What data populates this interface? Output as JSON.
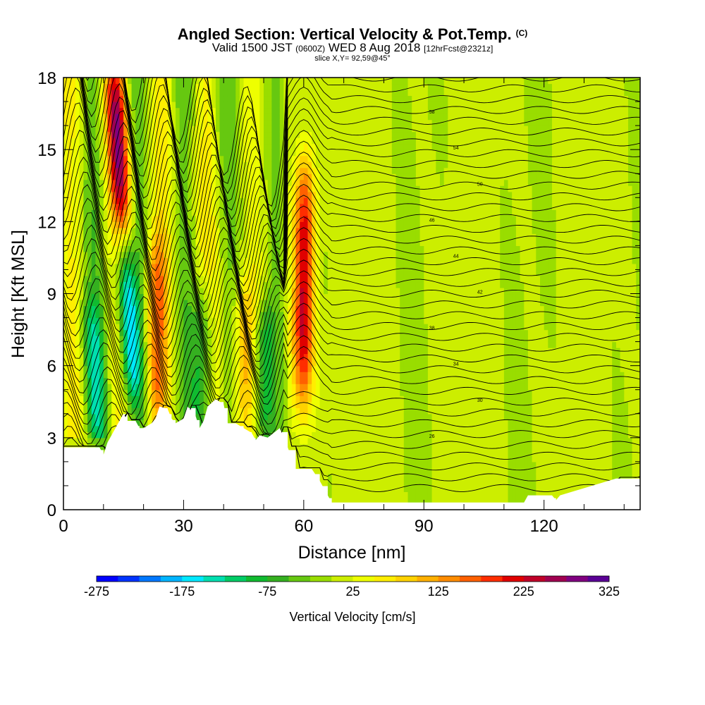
{
  "title": {
    "main": "Angled Section: Vertical Velocity & Pot.Temp.",
    "main_units": "(C)",
    "valid_prefix": "Valid 1500 JST",
    "valid_utc": "(0600Z)",
    "valid_date": "WED 8 Aug 2018",
    "valid_fcst": "[12hrFcst@2321z]",
    "slice": "slice X,Y= 92,59@45°"
  },
  "chart_data": {
    "type": "heatmap",
    "title": "Angled Section: Vertical Velocity & Pot.Temp. (C)",
    "xlabel": "Distance [nm]",
    "ylabel": "Height [Kft MSL]",
    "xlim": [
      0,
      144
    ],
    "ylim": [
      0,
      18
    ],
    "xticks": [
      0,
      30,
      60,
      90,
      120
    ],
    "yticks": [
      0,
      3,
      6,
      9,
      12,
      15,
      18
    ],
    "colorbar": {
      "label": "Vertical Velocity [cm/s]",
      "tick_labels": [
        -275,
        -175,
        -75,
        25,
        125,
        225,
        325
      ],
      "min": -275,
      "max": 325,
      "step": 25,
      "colors": [
        "#0000ff",
        "#0033ff",
        "#0077ff",
        "#00b4ff",
        "#00e8ff",
        "#00dfb0",
        "#00cc66",
        "#10bb30",
        "#35b020",
        "#66c810",
        "#99dd00",
        "#ccee00",
        "#eeff00",
        "#ffee00",
        "#ffd200",
        "#ffb000",
        "#ff8c00",
        "#ff6000",
        "#ff2d00",
        "#e00000",
        "#c00028",
        "#a00050",
        "#800080",
        "#5a0095"
      ]
    },
    "updrafts": [
      {
        "x": 14,
        "zbot": 11,
        "ztop": 18,
        "peak": 225
      },
      {
        "x": 23,
        "zbot": 4,
        "ztop": 11,
        "peak": 135
      },
      {
        "x": 60,
        "zbot": 5,
        "ztop": 14,
        "peak": 225
      },
      {
        "x": 45,
        "zbot": 3.5,
        "ztop": 9,
        "peak": 90
      }
    ],
    "downdrafts": [
      {
        "x": 16,
        "zbot": 5,
        "ztop": 12,
        "peak": -180
      },
      {
        "x": 8,
        "zbot": 3,
        "ztop": 8,
        "peak": -100
      },
      {
        "x": 35,
        "zbot": 3.5,
        "ztop": 9,
        "peak": -100
      },
      {
        "x": 50,
        "zbot": 3,
        "ztop": 8,
        "peak": -110
      }
    ],
    "terrain_kft": [
      [
        0,
        2.6
      ],
      [
        9,
        2.6
      ],
      [
        10,
        2.3
      ],
      [
        11,
        2.8
      ],
      [
        12,
        3.1
      ],
      [
        13,
        3.4
      ],
      [
        14,
        3.7
      ],
      [
        15,
        4.0
      ],
      [
        16,
        3.7
      ],
      [
        18,
        3.7
      ],
      [
        19,
        3.4
      ],
      [
        20,
        3.4
      ],
      [
        22,
        3.6
      ],
      [
        23,
        3.8
      ],
      [
        24,
        4.3
      ],
      [
        26,
        4.2
      ],
      [
        27,
        3.8
      ],
      [
        28,
        3.6
      ],
      [
        30,
        3.8
      ],
      [
        31,
        4.3
      ],
      [
        33,
        3.9
      ],
      [
        34,
        3.4
      ],
      [
        35,
        3.7
      ],
      [
        36,
        4.3
      ],
      [
        38,
        4.6
      ],
      [
        40,
        4.4
      ],
      [
        41,
        3.6
      ],
      [
        43,
        3.6
      ],
      [
        45,
        3.4
      ],
      [
        47,
        3.2
      ],
      [
        48,
        2.9
      ],
      [
        49,
        3.1
      ],
      [
        51,
        3.0
      ],
      [
        54,
        3.4
      ],
      [
        56,
        2.6
      ],
      [
        58,
        1.7
      ],
      [
        62,
        1.7
      ],
      [
        64,
        1.2
      ],
      [
        66,
        0.6
      ],
      [
        67,
        0.3
      ],
      [
        70,
        0.3
      ],
      [
        90,
        0.3
      ],
      [
        115,
        0.3
      ],
      [
        116,
        0.6
      ],
      [
        122,
        0.6
      ],
      [
        123,
        0.4
      ],
      [
        124,
        0.6
      ],
      [
        130,
        0.9
      ],
      [
        138,
        1.3
      ],
      [
        144,
        1.3
      ]
    ],
    "isentrope_labels": [
      "58",
      "54",
      "50",
      "46",
      "44",
      "42",
      "38",
      "34",
      "30",
      "26"
    ]
  }
}
